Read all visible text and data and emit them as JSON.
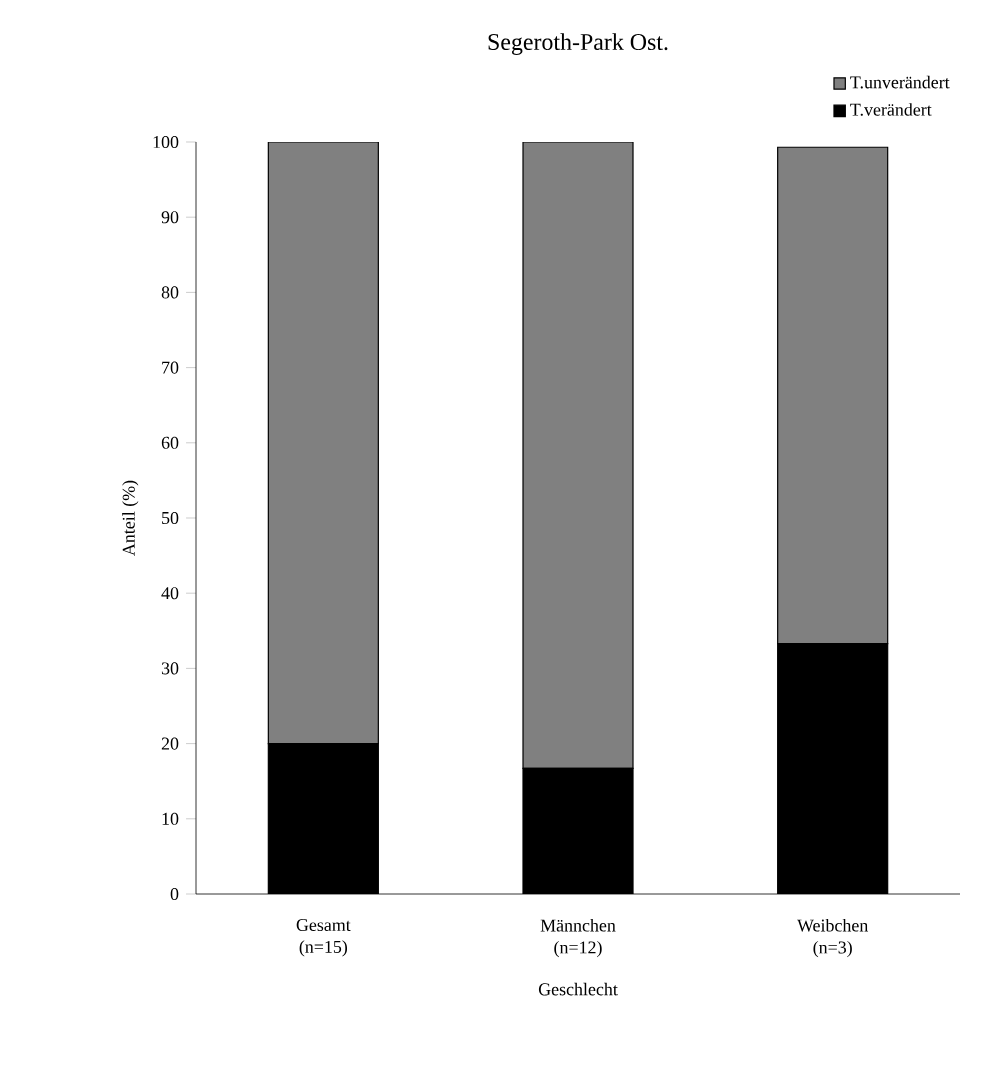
{
  "chart_data": {
    "type": "bar",
    "title": "Segeroth-Park Ost.",
    "xlabel": "Geschlecht",
    "ylabel": "Anteil (%)",
    "categories": [
      "Gesamt\n(n=15)",
      "Männchen\n(n=12)",
      "Weibchen\n(n=3)"
    ],
    "stacked": true,
    "series": [
      {
        "name": "T.verändert",
        "color": "#000000",
        "values": [
          20,
          16.7,
          33.3
        ]
      },
      {
        "name": "T.unverändert",
        "color": "#808080",
        "values": [
          80,
          83.3,
          66
        ]
      }
    ],
    "ylim": [
      0,
      100
    ],
    "yticks": [
      0,
      10,
      20,
      30,
      40,
      50,
      60,
      70,
      80,
      90,
      100
    ],
    "grid": false,
    "legend": "top right"
  }
}
